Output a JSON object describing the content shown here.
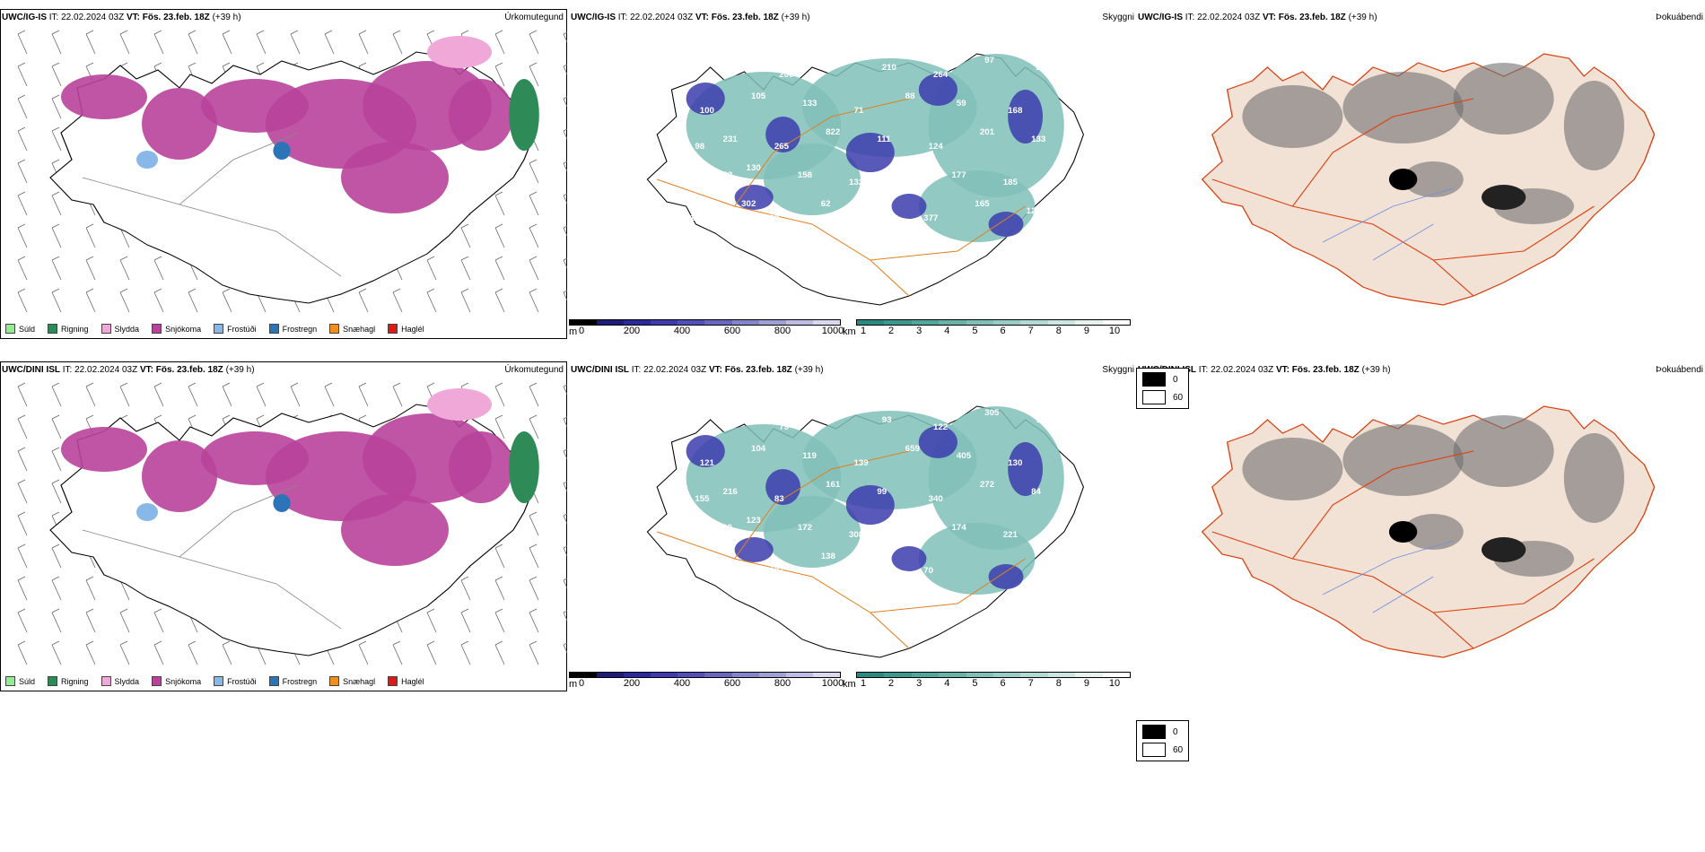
{
  "rows": [
    {
      "model": "UWC/IG-IS",
      "it": "IT: 22.02.2024 03Z",
      "vt_label": "VT:",
      "vt": "Fös. 23.feb. 18Z",
      "lead": "(+39 h)"
    },
    {
      "model": "UWC/DINI ISL",
      "it": "IT: 22.02.2024 03Z",
      "vt_label": "VT:",
      "vt": "Fös. 23.feb. 18Z",
      "lead": "(+39 h)"
    }
  ],
  "panel_titles": {
    "precip": "Úrkomutegund",
    "cloud": "Skyggni",
    "fog": "Þokuábendi"
  },
  "precip_legend": [
    {
      "label": "Súld",
      "color": "#90ee90"
    },
    {
      "label": "Rigning",
      "color": "#2e8b57"
    },
    {
      "label": "Slydda",
      "color": "#f0a8d8"
    },
    {
      "label": "Snjókoma",
      "color": "#b8439a"
    },
    {
      "label": "Frostúði",
      "color": "#87b8e8"
    },
    {
      "label": "Frostregn",
      "color": "#2c74b8"
    },
    {
      "label": "Snæhagl",
      "color": "#f0901c"
    },
    {
      "label": "Haglél",
      "color": "#e01818"
    }
  ],
  "cloud_scale": {
    "unit": "m",
    "ticks": [
      "0",
      "200",
      "400",
      "600",
      "800",
      "1000"
    ],
    "colors": [
      "#000000",
      "#1c1c7a",
      "#2a2a9c",
      "#3c3cae",
      "#5050b8",
      "#6868c0",
      "#8484cc",
      "#a0a0d8",
      "#bcbce4",
      "#d8d8f0"
    ]
  },
  "vis_scale": {
    "unit": "km",
    "ticks": [
      "1",
      "2",
      "3",
      "4",
      "5",
      "6",
      "7",
      "8",
      "9",
      "10"
    ],
    "colors": [
      "#2a8a80",
      "#3e988e",
      "#52a69c",
      "#68b2aa",
      "#80c0b8",
      "#98ccc6",
      "#b2dad4",
      "#cce6e2",
      "#e6f2f0",
      "#ffffff"
    ]
  },
  "fog_legend": [
    "0",
    "60"
  ],
  "cloud_labels_top": [
    "98",
    "117",
    "200",
    "162",
    "210",
    "264",
    "97",
    "246",
    "100",
    "105",
    "133",
    "71",
    "88",
    "59",
    "168",
    "186",
    "231",
    "265",
    "822",
    "111",
    "124",
    "201",
    "133",
    "98",
    "130",
    "158",
    "132",
    "218",
    "177",
    "185",
    "71",
    "133",
    "90",
    "62",
    "101",
    "377",
    "165",
    "124",
    "139",
    "302",
    "64",
    "60",
    "120"
  ],
  "cloud_labels_bottom": [
    "89",
    "96",
    "79",
    "184",
    "93",
    "122",
    "305",
    "136",
    "121",
    "104",
    "119",
    "139",
    "659",
    "405",
    "130",
    "322",
    "216",
    "83",
    "161",
    "99",
    "340",
    "272",
    "84",
    "155",
    "123",
    "172",
    "308",
    "59",
    "174",
    "221",
    "195",
    "110",
    "107",
    "138",
    "113",
    "70"
  ]
}
